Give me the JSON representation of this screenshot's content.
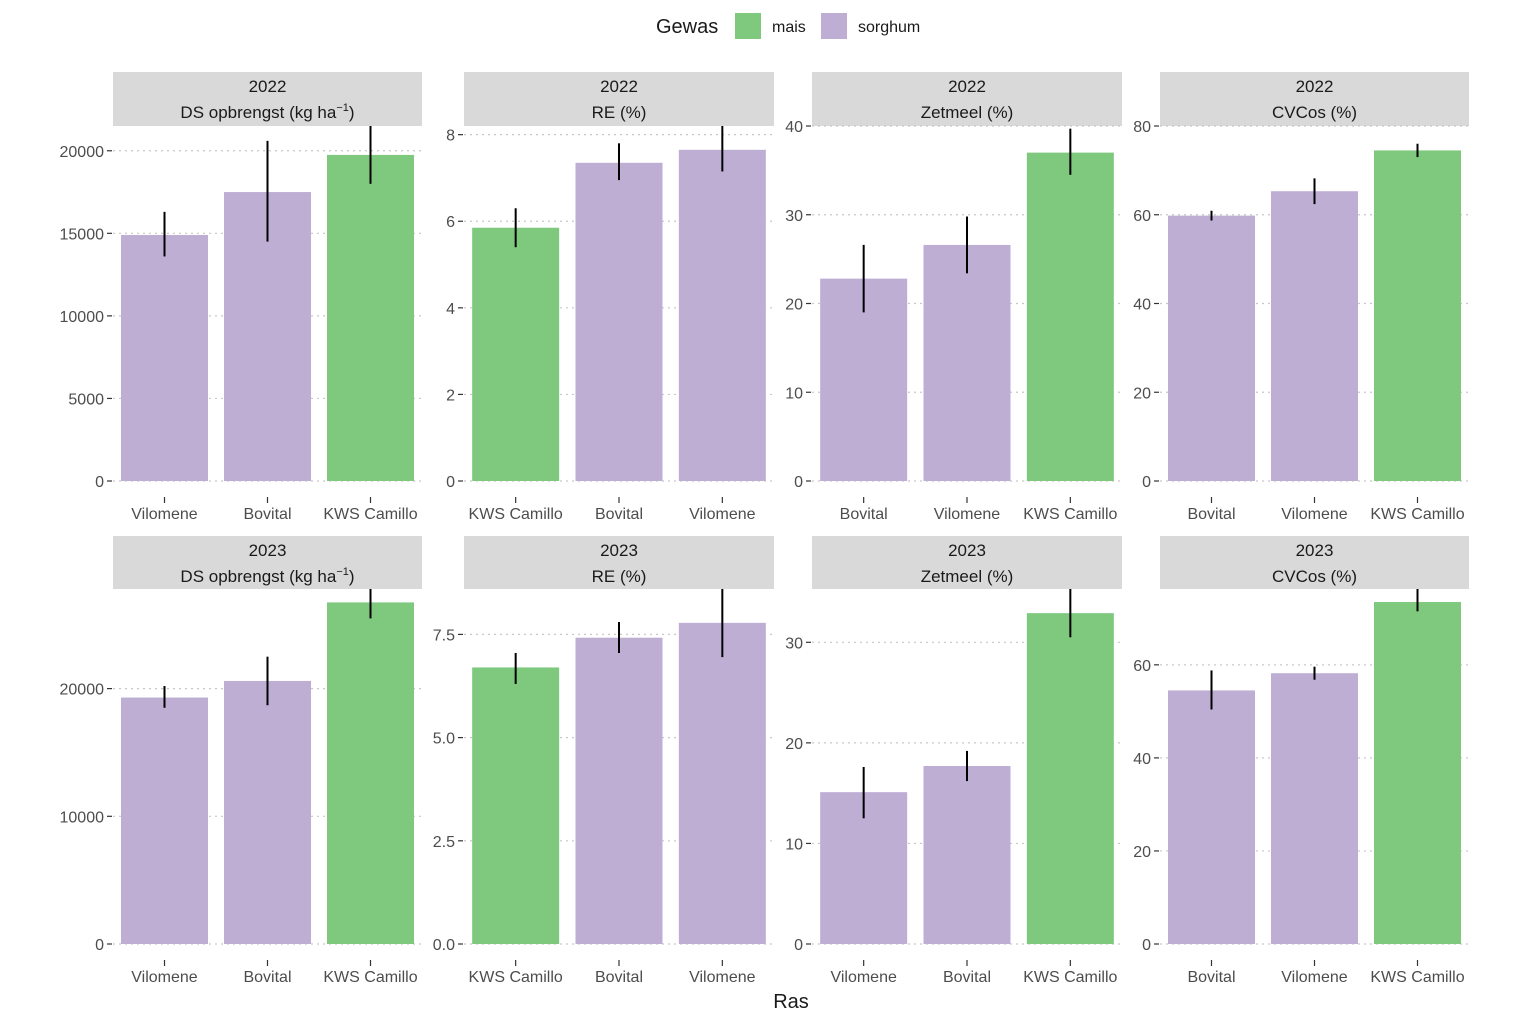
{
  "legend": {
    "title": "Gewas",
    "items": [
      {
        "label": "mais",
        "color": "#7fc97f"
      },
      {
        "label": "sorghum",
        "color": "#beaed4"
      }
    ]
  },
  "x_axis_title": "Ras",
  "chart_data": [
    {
      "type": "bar",
      "year": "2022",
      "metric": "DS opbrengst (kg ha",
      "metric_sup": "−1",
      "metric_suffix": ")",
      "ylim": [
        0,
        21500
      ],
      "yticks": [
        0,
        5000,
        10000,
        15000,
        20000
      ],
      "categories": [
        "Vilomene",
        "Bovital",
        "KWS Camillo"
      ],
      "crops": [
        "sorghum",
        "sorghum",
        "mais"
      ],
      "values": [
        14900,
        17500,
        19750
      ],
      "err_low": [
        13600,
        14500,
        18000
      ],
      "err_high": [
        16300,
        20600,
        21500
      ]
    },
    {
      "type": "bar",
      "year": "2022",
      "metric": "RE (%)",
      "ylim": [
        0,
        8.2
      ],
      "yticks": [
        0,
        2,
        4,
        6,
        8
      ],
      "categories": [
        "KWS Camillo",
        "Bovital",
        "Vilomene"
      ],
      "crops": [
        "mais",
        "sorghum",
        "sorghum"
      ],
      "values": [
        5.85,
        7.35,
        7.65
      ],
      "err_low": [
        5.4,
        6.95,
        7.15
      ],
      "err_high": [
        6.3,
        7.8,
        8.2
      ]
    },
    {
      "type": "bar",
      "year": "2022",
      "metric": "Zetmeel (%)",
      "ylim": [
        0,
        40
      ],
      "yticks": [
        0,
        10,
        20,
        30,
        40
      ],
      "categories": [
        "Bovital",
        "Vilomene",
        "KWS Camillo"
      ],
      "crops": [
        "sorghum",
        "sorghum",
        "mais"
      ],
      "values": [
        22.8,
        26.6,
        37.0
      ],
      "err_low": [
        19.0,
        23.4,
        34.5
      ],
      "err_high": [
        26.6,
        29.8,
        39.7
      ]
    },
    {
      "type": "bar",
      "year": "2022",
      "metric": "CVCos (%)",
      "ylim": [
        0,
        80
      ],
      "yticks": [
        0,
        20,
        40,
        60,
        80
      ],
      "categories": [
        "Bovital",
        "Vilomene",
        "KWS Camillo"
      ],
      "crops": [
        "sorghum",
        "sorghum",
        "mais"
      ],
      "values": [
        59.8,
        65.3,
        74.5
      ],
      "err_low": [
        58.7,
        62.4,
        73.0
      ],
      "err_high": [
        60.9,
        68.2,
        76.0
      ]
    },
    {
      "type": "bar",
      "year": "2023",
      "metric": "DS opbrengst (kg ha",
      "metric_sup": "−1",
      "metric_suffix": ")",
      "ylim": [
        0,
        27800
      ],
      "yticks": [
        0,
        10000,
        20000
      ],
      "categories": [
        "Vilomene",
        "Bovital",
        "KWS Camillo"
      ],
      "crops": [
        "sorghum",
        "sorghum",
        "mais"
      ],
      "values": [
        19300,
        20600,
        26750
      ],
      "err_low": [
        18500,
        18700,
        25500
      ],
      "err_high": [
        20200,
        22500,
        27800
      ]
    },
    {
      "type": "bar",
      "year": "2023",
      "metric": "RE (%)",
      "ylim": [
        0,
        8.6
      ],
      "yticks": [
        0,
        2.5,
        5.0,
        7.5
      ],
      "ytick_labels": [
        "0.0",
        "2.5",
        "5.0",
        "7.5"
      ],
      "categories": [
        "KWS Camillo",
        "Bovital",
        "Vilomene"
      ],
      "crops": [
        "mais",
        "sorghum",
        "sorghum"
      ],
      "values": [
        6.7,
        7.42,
        7.78
      ],
      "err_low": [
        6.3,
        7.05,
        6.95
      ],
      "err_high": [
        7.05,
        7.8,
        8.6
      ]
    },
    {
      "type": "bar",
      "year": "2023",
      "metric": "Zetmeel (%)",
      "ylim": [
        0,
        35.3
      ],
      "yticks": [
        0,
        10,
        20,
        30
      ],
      "categories": [
        "Vilomene",
        "Bovital",
        "KWS Camillo"
      ],
      "crops": [
        "sorghum",
        "sorghum",
        "mais"
      ],
      "values": [
        15.1,
        17.7,
        32.9
      ],
      "err_low": [
        12.5,
        16.2,
        30.5
      ],
      "err_high": [
        17.6,
        19.2,
        35.3
      ]
    },
    {
      "type": "bar",
      "year": "2023",
      "metric": "CVCos (%)",
      "ylim": [
        0,
        76.3
      ],
      "yticks": [
        0,
        20,
        40,
        60
      ],
      "categories": [
        "Bovital",
        "Vilomene",
        "KWS Camillo"
      ],
      "crops": [
        "sorghum",
        "sorghum",
        "mais"
      ],
      "values": [
        54.5,
        58.2,
        73.5
      ],
      "err_low": [
        50.4,
        56.8,
        71.5
      ],
      "err_high": [
        58.8,
        59.6,
        76.3
      ]
    }
  ]
}
